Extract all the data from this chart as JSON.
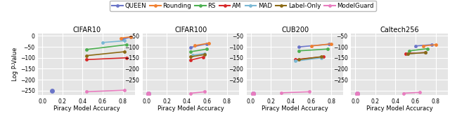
{
  "datasets": [
    "CIFAR10",
    "CIFAR100",
    "CUB200",
    "Caltech256"
  ],
  "methods": [
    "QUEEN",
    "Rounding",
    "RS",
    "AM",
    "MAD",
    "Label-Only",
    "ModelGuard"
  ],
  "colors": {
    "QUEEN": "#6b75c8",
    "Rounding": "#f08030",
    "RS": "#4caf50",
    "AM": "#d62728",
    "MAD": "#7ab8d4",
    "Label-Only": "#8b6914",
    "ModelGuard": "#e87dbf"
  },
  "xlabel": "Piracy Model Accuracy",
  "ylabel": "Log P-Value",
  "background_color": "#e5e5e5",
  "chart_data": {
    "CIFAR10": {
      "QUEEN": {
        "line": [
          [
            0.8,
            -15
          ],
          [
            0.88,
            -5
          ]
        ],
        "dot": [
          0.1,
          -252
        ]
      },
      "Rounding": {
        "line": [
          [
            0.78,
            -10
          ],
          [
            0.88,
            -4
          ]
        ],
        "dot": null
      },
      "RS": {
        "line": [
          [
            0.44,
            -62
          ],
          [
            0.84,
            -40
          ]
        ],
        "dot": null
      },
      "AM": {
        "line": [
          [
            0.44,
            -108
          ],
          [
            0.84,
            -100
          ]
        ],
        "dot": null
      },
      "MAD": {
        "line": [
          [
            0.6,
            -30
          ],
          [
            0.82,
            -22
          ]
        ],
        "dot": null
      },
      "Label-Only": {
        "line": [
          [
            0.44,
            -90
          ],
          [
            0.82,
            -72
          ]
        ],
        "dot": null
      },
      "ModelGuard": {
        "line": [
          [
            0.44,
            -255
          ],
          [
            0.82,
            -248
          ]
        ],
        "dot": null
      }
    },
    "CIFAR100": {
      "QUEEN": {
        "line": [
          [
            0.44,
            -52
          ],
          [
            0.6,
            -36
          ]
        ],
        "dot": [
          0.02,
          -262
        ]
      },
      "Rounding": {
        "line": [
          [
            0.48,
            -44
          ],
          [
            0.62,
            -33
          ]
        ],
        "dot": null
      },
      "RS": {
        "line": [
          [
            0.44,
            -72
          ],
          [
            0.6,
            -60
          ]
        ],
        "dot": null
      },
      "AM": {
        "line": [
          [
            0.44,
            -110
          ],
          [
            0.56,
            -97
          ]
        ],
        "dot": null
      },
      "MAD": {
        "line": [
          [
            0.46,
            -88
          ],
          [
            0.58,
            -80
          ]
        ],
        "dot": null
      },
      "Label-Only": {
        "line": [
          [
            0.44,
            -95
          ],
          [
            0.58,
            -85
          ]
        ],
        "dot": null
      },
      "ModelGuard": {
        "line": [
          [
            0.44,
            -262
          ],
          [
            0.58,
            -255
          ]
        ],
        "dot": [
          0.02,
          -262
        ]
      }
    },
    "CUB200": {
      "QUEEN": {
        "line": [
          [
            0.48,
            -50
          ],
          [
            0.78,
            -38
          ]
        ],
        "dot": [
          0.02,
          -262
        ]
      },
      "Rounding": {
        "line": [
          [
            0.6,
            -46
          ],
          [
            0.8,
            -36
          ]
        ],
        "dot": null
      },
      "RS": {
        "line": [
          [
            0.48,
            -68
          ],
          [
            0.76,
            -60
          ]
        ],
        "dot": null
      },
      "AM": {
        "line": [
          [
            0.44,
            -108
          ],
          [
            0.72,
            -95
          ]
        ],
        "dot": null
      },
      "MAD": {
        "line": [
          [
            0.44,
            -115
          ],
          [
            0.7,
            -100
          ]
        ],
        "dot": null
      },
      "Label-Only": {
        "line": [
          [
            0.48,
            -108
          ],
          [
            0.7,
            -95
          ]
        ],
        "dot": null
      },
      "ModelGuard": {
        "line": [
          [
            0.3,
            -260
          ],
          [
            0.58,
            -255
          ]
        ],
        "dot": [
          0.02,
          -262
        ]
      }
    },
    "Caltech256": {
      "QUEEN": {
        "line": [
          [
            0.6,
            -46
          ],
          [
            0.76,
            -40
          ]
        ],
        "dot": [
          0.02,
          -262
        ]
      },
      "Rounding": {
        "line": [
          [
            0.68,
            -46
          ],
          [
            0.8,
            -40
          ]
        ],
        "dot": null
      },
      "RS": {
        "line": [
          [
            0.54,
            -68
          ],
          [
            0.72,
            -58
          ]
        ],
        "dot": null
      },
      "AM": {
        "line": [
          [
            0.5,
            -80
          ],
          [
            0.7,
            -76
          ]
        ],
        "dot": null
      },
      "MAD": {
        "line": [
          [
            0.52,
            -82
          ],
          [
            0.7,
            -76
          ]
        ],
        "dot": null
      },
      "Label-Only": {
        "line": [
          [
            0.52,
            -82
          ],
          [
            0.7,
            -76
          ]
        ],
        "dot": null
      },
      "ModelGuard": {
        "line": [
          [
            0.48,
            -262
          ],
          [
            0.64,
            -258
          ]
        ],
        "dot": [
          0.02,
          -262
        ]
      }
    }
  }
}
